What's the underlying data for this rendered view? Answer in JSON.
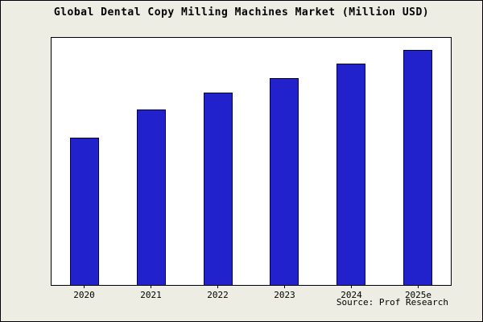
{
  "title": "Global Dental Copy Milling Machines Market (Million USD)",
  "source": "Source: Prof Research",
  "colors": {
    "background": "#EDEDE3",
    "plot_background": "#FFFFFF",
    "bar_fill": "#2222CC",
    "bar_edge": "#000066",
    "frame": "#000000"
  },
  "chart_data": {
    "type": "bar",
    "title": "Global Dental Copy Milling Machines Market (Million USD)",
    "categories": [
      "2020",
      "2021",
      "2022",
      "2023",
      "2024",
      "2025e"
    ],
    "values": [
      62,
      74,
      81,
      87,
      93,
      99
    ],
    "xlabel": "",
    "ylabel": "",
    "ylim": [
      0,
      104
    ],
    "y_axis_labels_visible": false,
    "grid": false,
    "legend_position": "none",
    "annotation": "Source: Prof Research"
  }
}
